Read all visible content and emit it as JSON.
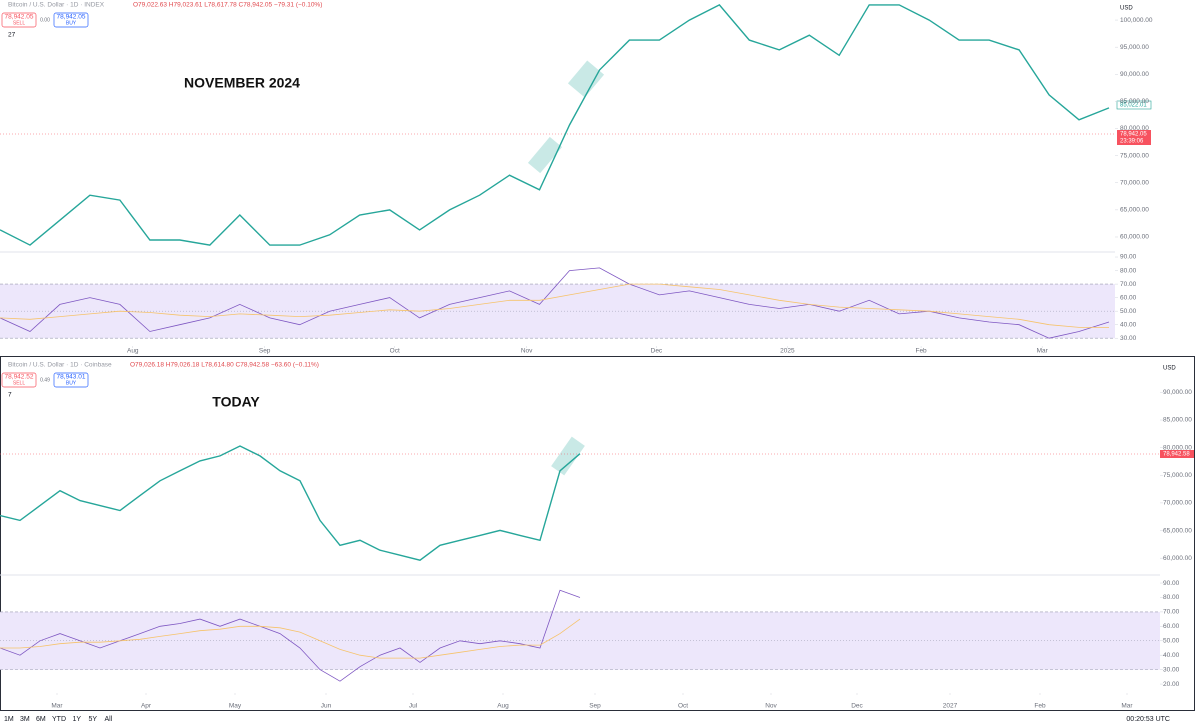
{
  "panels": [
    {
      "symbol": "Bitcoin / U.S. Dollar · 1D · INDEX",
      "ohlc": "O79,022.63 H79,023.61 L78,617.78 C78,942.05 −79.31 (−0.10%)",
      "sell": "78,942.05",
      "sell_label": "SELL",
      "spread": "0.00",
      "buy": "78,942.05",
      "buy_label": "BUY",
      "count": "27",
      "annotation": "NOVEMBER 2024",
      "currency": "USD",
      "price_tags": [
        "85,022.01",
        "78,942.05",
        "23:39:06"
      ],
      "chart_data": [
        {
          "type": "line",
          "color": "#26a69a",
          "values": [
            61300,
            58500,
            63100,
            67700,
            66800,
            59450,
            59450,
            58500,
            64050,
            58500,
            58500,
            60400,
            64050,
            65000,
            61300,
            65000,
            67700,
            71400,
            68700,
            80650,
            90800,
            96300,
            96300,
            100000,
            102800,
            96300,
            94500,
            97200,
            93500,
            102800,
            102800,
            100000,
            96300,
            96300,
            94500,
            86200,
            81600,
            83800
          ],
          "xlim": [
            0,
            37.2
          ],
          "ylim": [
            57600,
            103700
          ],
          "yticks": [
            {
              "value": 60000,
              "label": "60,000.00"
            },
            {
              "value": 65000,
              "label": "65,000.00"
            },
            {
              "value": 70000,
              "label": "70,000.00"
            },
            {
              "value": 75000,
              "label": "75,000.00"
            },
            {
              "value": 80000,
              "label": "80,000.00"
            },
            {
              "value": 85000,
              "label": "85,000.00"
            },
            {
              "value": 90000,
              "label": "90,000.00"
            },
            {
              "value": 95000,
              "label": "95,000.00"
            },
            {
              "value": 100000,
              "label": "100,000.00"
            }
          ]
        },
        {
          "type": "line",
          "series": [
            {
              "color": "#7e57c2",
              "values": [
                45,
                35,
                55,
                60,
                55,
                35,
                40,
                45,
                55,
                45,
                40,
                50,
                55,
                60,
                45,
                55,
                60,
                65,
                55,
                80,
                82,
                70,
                62,
                65,
                60,
                55,
                52,
                55,
                50,
                58,
                48,
                50,
                45,
                42,
                40,
                30,
                35,
                42
              ]
            },
            {
              "color": "#f6c36b",
              "values": [
                45,
                44,
                46,
                48,
                50,
                49,
                47,
                46,
                48,
                47,
                46,
                47,
                49,
                51,
                50,
                52,
                55,
                58,
                58,
                62,
                66,
                70,
                70,
                68,
                66,
                62,
                58,
                55,
                53,
                52,
                51,
                50,
                48,
                46,
                44,
                40,
                38,
                38
              ]
            }
          ],
          "band": [
            30,
            70
          ],
          "band_color": "#ede7fb",
          "midline": 50,
          "xlim": [
            0,
            37.2
          ],
          "ylim": [
            25,
            91.5
          ],
          "yticks": [
            {
              "value": 30,
              "label": "30.00"
            },
            {
              "value": 40,
              "label": "40.00"
            },
            {
              "value": 50,
              "label": "50.00"
            },
            {
              "value": 60,
              "label": "60.00"
            },
            {
              "value": 70,
              "label": "70.00"
            },
            {
              "value": 80,
              "label": "80.00"
            },
            {
              "value": 90,
              "label": "90.00"
            }
          ],
          "xticks": [
            {
              "value": 4.43,
              "label": "Aug"
            },
            {
              "value": 8.83,
              "label": "Sep"
            },
            {
              "value": 13.17,
              "label": "Oct"
            },
            {
              "value": 17.57,
              "label": "Nov"
            },
            {
              "value": 21.9,
              "label": "Dec"
            },
            {
              "value": 26.27,
              "label": "2025"
            },
            {
              "value": 30.73,
              "label": "Feb"
            },
            {
              "value": 34.77,
              "label": "Mar"
            }
          ]
        }
      ]
    },
    {
      "symbol": "Bitcoin / U.S. Dollar · 1D · Coinbase",
      "ohlc": "O79,026.18 H79,026.18 L78,614.80 C78,942.58 −63.60 (−0.11%)",
      "sell": "78,942.52",
      "sell_label": "SELL",
      "spread": "0.49",
      "buy": "78,943.01",
      "buy_label": "BUY",
      "count": "7",
      "annotation": "TODAY",
      "currency": "USD",
      "price_tags": [
        "78,942.58"
      ],
      "chart_data": [
        {
          "type": "line",
          "color": "#26a69a",
          "values": [
            67720,
            66830,
            69520,
            72210,
            70420,
            69520,
            68620,
            71320,
            74010,
            75810,
            77600,
            78500,
            80300,
            78500,
            75810,
            74010,
            66830,
            62340,
            63230,
            61440,
            60540,
            59640,
            62340,
            63230,
            64130,
            65030,
            64130,
            63230,
            75810,
            78900
          ],
          "xlim": [
            0,
            58
          ],
          "ylim": [
            57500,
            95500
          ],
          "yticks": [
            {
              "value": 60000,
              "label": "60,000.00"
            },
            {
              "value": 65000,
              "label": "65,000.00"
            },
            {
              "value": 70000,
              "label": "70,000.00"
            },
            {
              "value": 75000,
              "label": "75,000.00"
            },
            {
              "value": 80000,
              "label": "80,000.00"
            },
            {
              "value": 85000,
              "label": "85,000.00"
            },
            {
              "value": 90000,
              "label": "90,000.00"
            }
          ]
        },
        {
          "type": "line",
          "series": [
            {
              "color": "#7e57c2",
              "values": [
                45,
                40,
                50,
                55,
                50,
                45,
                50,
                55,
                60,
                62,
                65,
                60,
                65,
                60,
                55,
                45,
                30,
                22,
                32,
                40,
                45,
                35,
                45,
                50,
                48,
                50,
                48,
                45,
                85,
                80
              ]
            },
            {
              "color": "#f6c36b",
              "values": [
                45,
                45,
                46,
                48,
                49,
                49,
                50,
                51,
                53,
                55,
                57,
                58,
                60,
                60,
                59,
                56,
                50,
                44,
                40,
                38,
                38,
                38,
                40,
                42,
                44,
                46,
                47,
                47,
                55,
                65
              ]
            }
          ],
          "band": [
            30,
            70
          ],
          "band_color": "#ede7fb",
          "midline": 50,
          "xlim": [
            0,
            58
          ],
          "ylim": [
            14.5,
            93.5
          ],
          "yticks": [
            {
              "value": 20,
              "label": "20.00"
            },
            {
              "value": 30,
              "label": "30.00"
            },
            {
              "value": 40,
              "label": "40.00"
            },
            {
              "value": 50,
              "label": "50.00"
            },
            {
              "value": 60,
              "label": "60.00"
            },
            {
              "value": 70,
              "label": "70.00"
            },
            {
              "value": 80,
              "label": "80.00"
            },
            {
              "value": 90,
              "label": "90.00"
            }
          ],
          "xticks": [
            {
              "value": 2.85,
              "label": "Mar"
            },
            {
              "value": 7.3,
              "label": "Apr"
            },
            {
              "value": 11.75,
              "label": "May"
            },
            {
              "value": 16.3,
              "label": "Jun"
            },
            {
              "value": 20.65,
              "label": "Jul"
            },
            {
              "value": 25.15,
              "label": "Aug"
            },
            {
              "value": 29.75,
              "label": "Sep"
            },
            {
              "value": 34.15,
              "label": "Oct"
            },
            {
              "value": 38.55,
              "label": "Nov"
            },
            {
              "value": 42.85,
              "label": "Dec"
            },
            {
              "value": 47.5,
              "label": "2027"
            },
            {
              "value": 52,
              "label": "Feb"
            },
            {
              "value": 56.35,
              "label": "Mar"
            }
          ]
        }
      ]
    }
  ],
  "toolbar": {
    "ranges": [
      "1M",
      "3M",
      "6M",
      "YTD",
      "1Y",
      "5Y",
      "All"
    ],
    "clock": "00:20:53 UTC"
  }
}
